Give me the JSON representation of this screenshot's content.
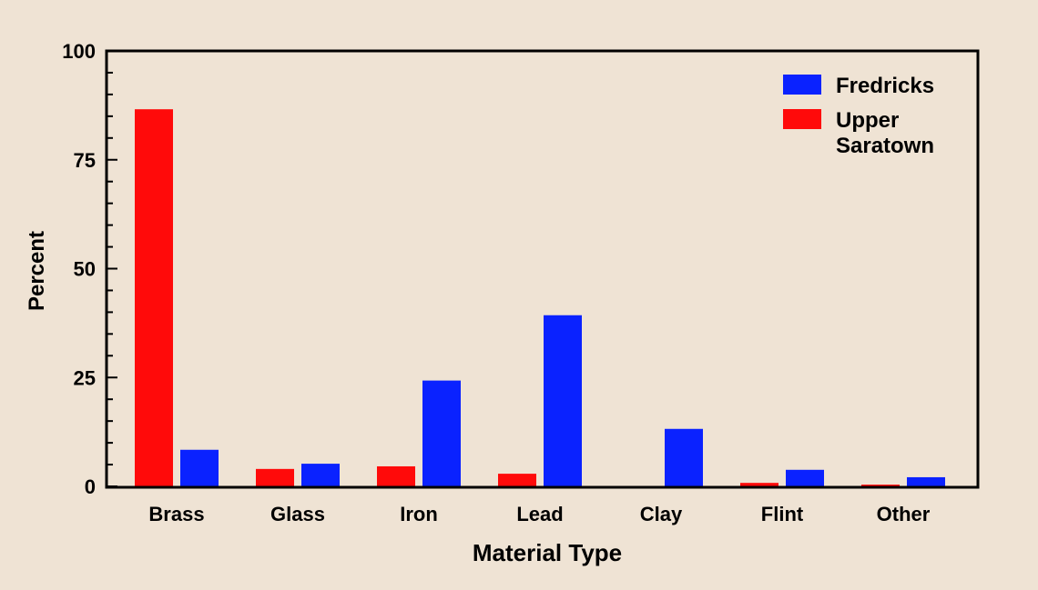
{
  "chart_data": {
    "type": "bar",
    "title": "",
    "xlabel": "Material Type",
    "ylabel": "Percent",
    "ylim": [
      0,
      100
    ],
    "yticks": [
      "0",
      "25",
      "50",
      "75",
      "100"
    ],
    "categories": [
      "Brass",
      "Glass",
      "Iron",
      "Lead",
      "Clay",
      "Flint",
      "Other"
    ],
    "series": [
      {
        "name": "Upper Saratown",
        "color": "#ff0a0a",
        "values": [
          86.6,
          4.0,
          4.6,
          2.9,
          0,
          0.8,
          0.4
        ]
      },
      {
        "name": "Fredricks",
        "color": "#0a22ff",
        "values": [
          8.4,
          5.2,
          24.3,
          39.3,
          13.2,
          3.8,
          2.1
        ]
      }
    ],
    "legend": {
      "position": "top-right",
      "entries": [
        {
          "label_lines": [
            "Fredricks"
          ],
          "color": "#0a22ff"
        },
        {
          "label_lines": [
            "Upper",
            "Saratown"
          ],
          "color": "#ff0a0a"
        }
      ]
    },
    "grid": false
  }
}
